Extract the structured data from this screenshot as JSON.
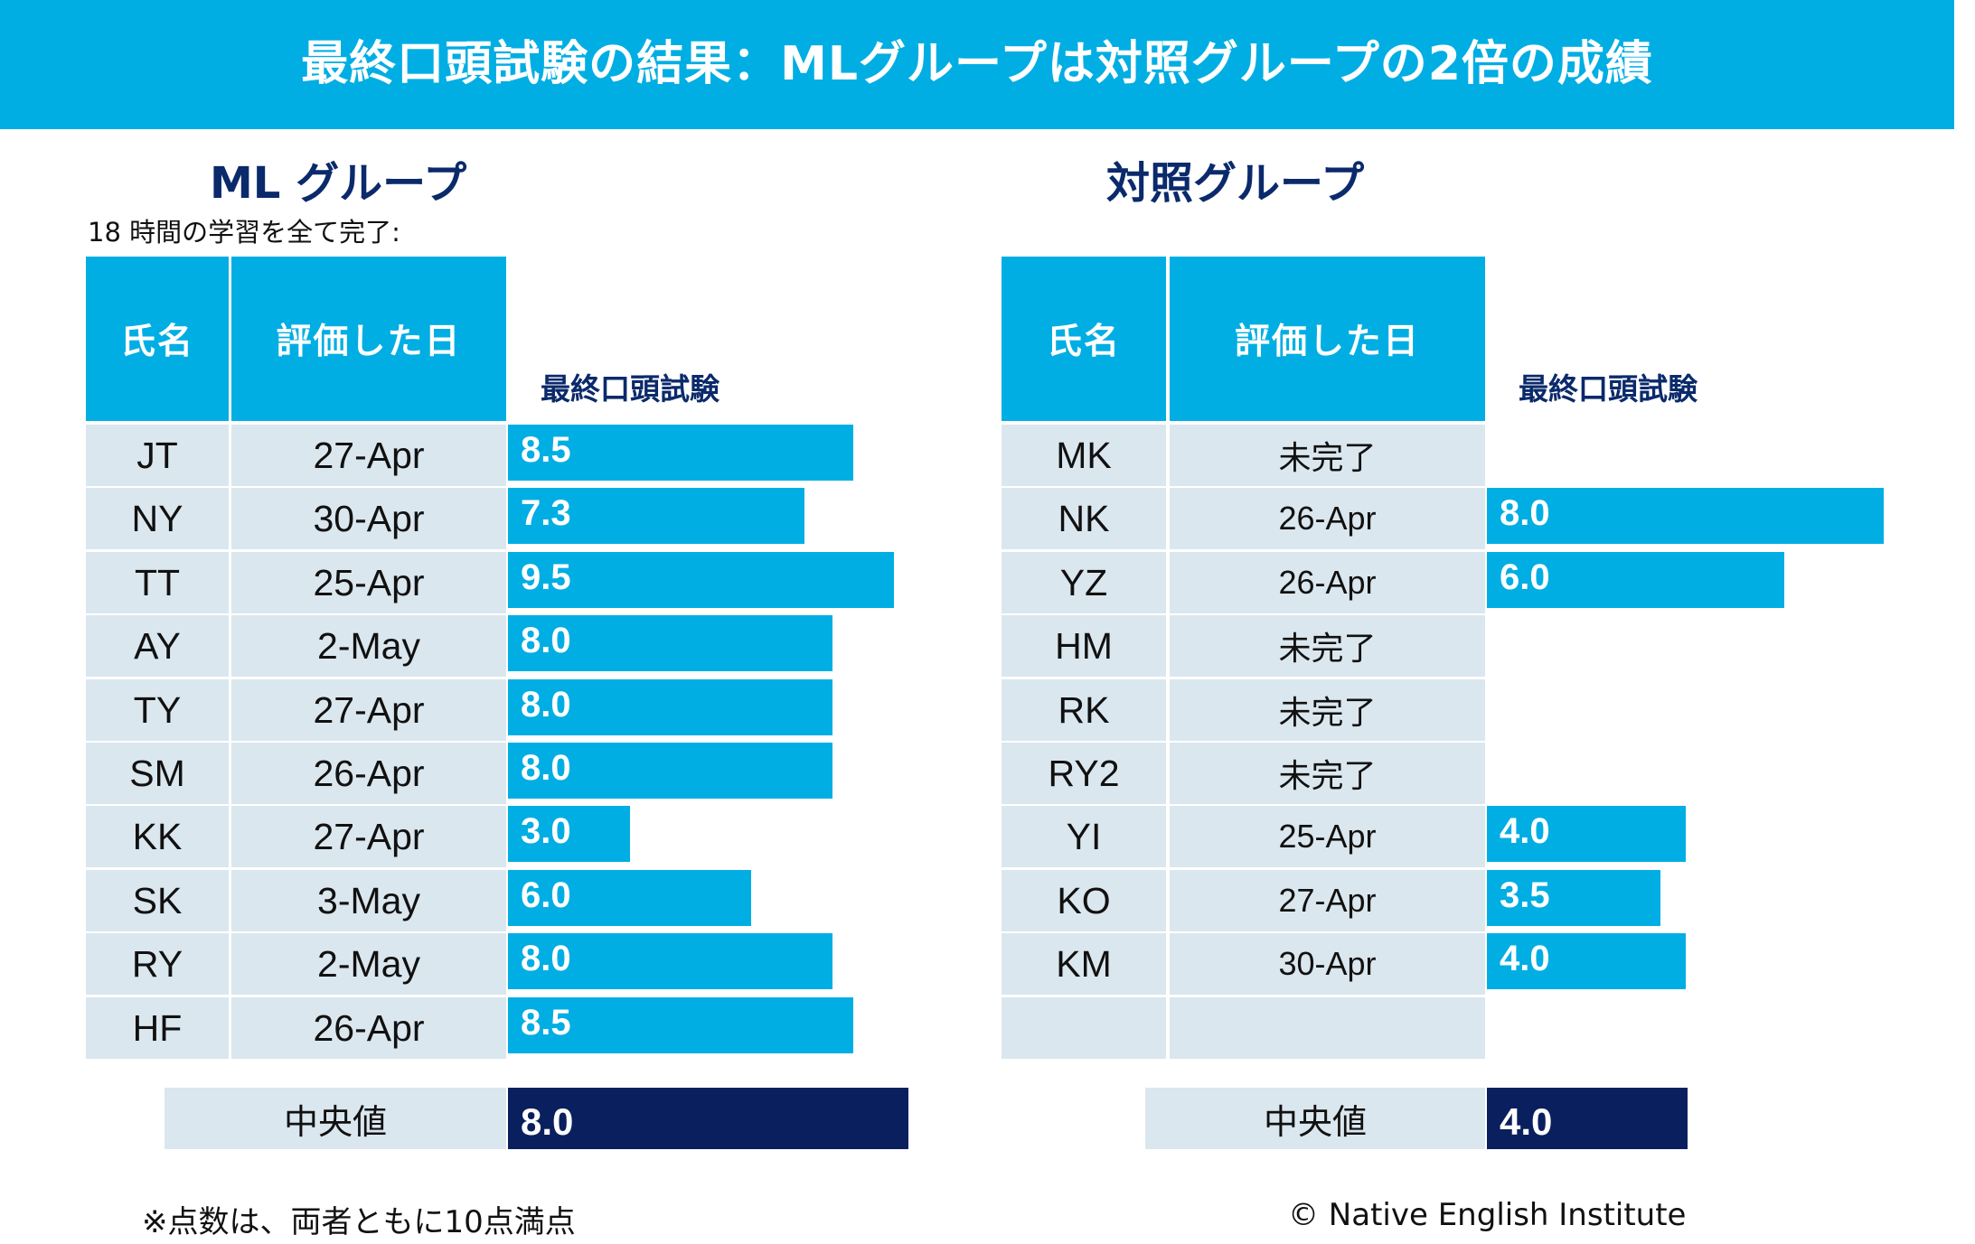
{
  "title": "最終口頭試験の結果：MLグループは対照グループの2倍の成績",
  "colors": {
    "accent": "#00aee3",
    "dark": "#0a1f5e",
    "cell": "#dbe7ee",
    "heading": "#0b2a6b"
  },
  "ml": {
    "heading": "ML グループ",
    "subtitle": "18 時間の学習を全て完了:",
    "col_name": "氏名",
    "col_date": "評価した日",
    "col_score": "最終口頭試験",
    "median_label": "中央値",
    "median_value": "8.0"
  },
  "control": {
    "heading": "対照グループ",
    "col_name": "氏名",
    "col_date": "評価した日",
    "col_score": "最終口頭試験",
    "median_label": "中央値",
    "median_value": "4.0"
  },
  "footnote": "※点数は、両者ともに10点満点",
  "copyright": "© Native English Institute",
  "chart_data": [
    {
      "type": "bar",
      "title": "ML グループ",
      "categories": [
        "JT",
        "NY",
        "TT",
        "AY",
        "TY",
        "SM",
        "KK",
        "SK",
        "RY",
        "HF"
      ],
      "dates": [
        "27-Apr",
        "30-Apr",
        "25-Apr",
        "2-May",
        "27-Apr",
        "26-Apr",
        "27-Apr",
        "3-May",
        "2-May",
        "26-Apr"
      ],
      "values": [
        8.5,
        7.3,
        9.5,
        8.0,
        8.0,
        8.0,
        3.0,
        6.0,
        8.0,
        8.5
      ],
      "labels": [
        "8.5",
        "7.3",
        "9.5",
        "8.0",
        "8.0",
        "8.0",
        "3.0",
        "6.0",
        "8.0",
        "8.5"
      ],
      "median": 8.0,
      "xlim": [
        0,
        10
      ]
    },
    {
      "type": "bar",
      "title": "対照グループ",
      "categories": [
        "MK",
        "NK",
        "YZ",
        "HM",
        "RK",
        "RY2",
        "YI",
        "KO",
        "KM",
        ""
      ],
      "dates": [
        "未完了",
        "26-Apr",
        "26-Apr",
        "未完了",
        "未完了",
        "未完了",
        "25-Apr",
        "27-Apr",
        "30-Apr",
        ""
      ],
      "values": [
        null,
        8.0,
        6.0,
        null,
        null,
        null,
        4.0,
        3.5,
        4.0,
        null
      ],
      "labels": [
        "",
        "8.0",
        "6.0",
        "",
        "",
        "",
        "4.0",
        "3.5",
        "4.0",
        ""
      ],
      "median": 4.0,
      "xlim": [
        0,
        10
      ]
    }
  ]
}
